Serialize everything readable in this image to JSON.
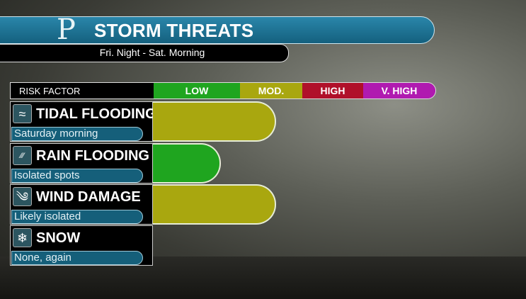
{
  "header": {
    "logo": "P",
    "title": "STORM THREATS",
    "subtitle": "Fri. Night - Sat. Morning"
  },
  "chart_data": {
    "type": "bar",
    "orientation": "horizontal",
    "xlabel": "RISK FACTOR",
    "levels": [
      "LOW",
      "MOD.",
      "HIGH",
      "V. HIGH"
    ],
    "level_colors": [
      "#1fa51f",
      "#a9a70f",
      "#b0102a",
      "#b01ab0"
    ],
    "categories": [
      "TIDAL FLOODING",
      "RAIN FLOODING",
      "WIND DAMAGE",
      "SNOW"
    ],
    "notes": [
      "Saturday morning",
      "Isolated spots",
      "Likely isolated",
      "None, again"
    ],
    "values": [
      "MOD.",
      "LOW",
      "MOD.",
      null
    ],
    "icons": [
      "tidal-wave-icon",
      "rain-icon",
      "wind-icon",
      "snowflake-icon"
    ]
  }
}
